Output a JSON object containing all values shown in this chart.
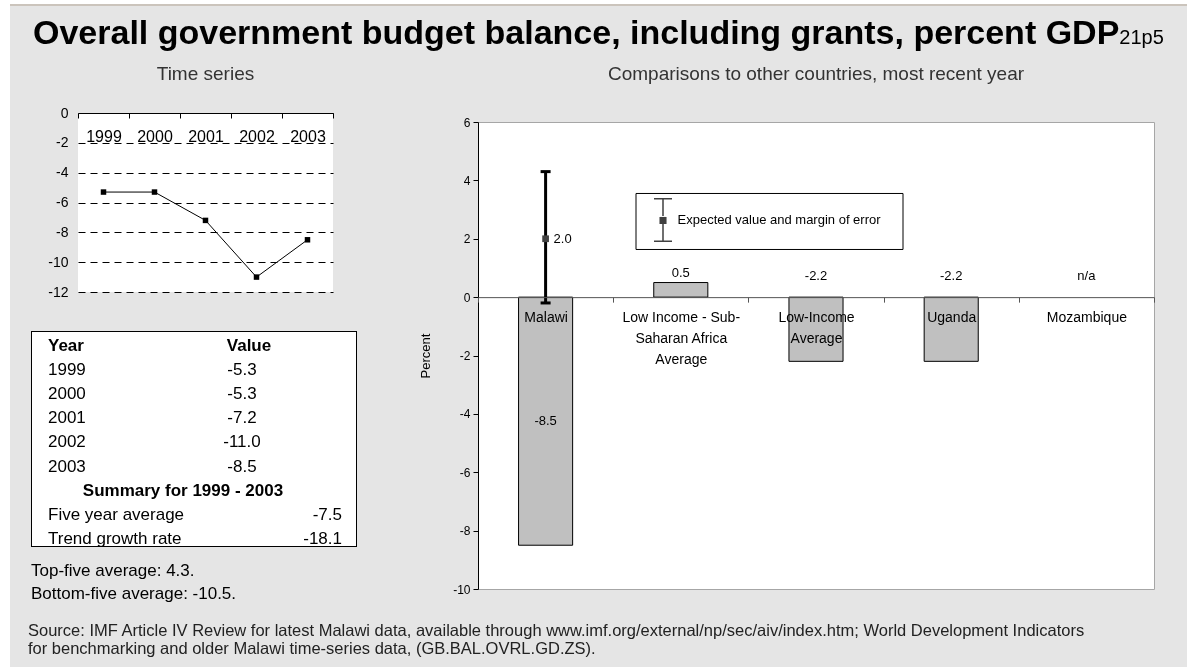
{
  "chart_data": [
    {
      "type": "line",
      "title": "Overall government budget balance, including grants, percent GDP",
      "subtitle": "Time series",
      "categories": [
        "1999",
        "2000",
        "2001",
        "2002",
        "2003"
      ],
      "values": [
        -5.3,
        -5.3,
        -7.2,
        -11.0,
        -8.5
      ],
      "color": "#000000",
      "marker": "square",
      "ylim": [
        -12,
        0
      ],
      "yticks": [
        -12,
        -10,
        -8,
        -6,
        -4,
        -2,
        0
      ],
      "grid": "y",
      "annotations": [
        "21p5",
        "Year",
        "Value",
        "-5.3",
        "-5.3",
        "-7.2",
        "-11.0",
        "-8.5",
        "Summary for 1999 - 2003",
        "Five year average",
        "-7.5",
        "Trend growth rate",
        "-18.1",
        "Top-five average: 4.3.",
        "Bottom-five average: -10.5."
      ]
    },
    {
      "type": "bar",
      "title": "Comparisons to other countries, most recent year",
      "ylabel": "Percent",
      "categories": [
        "Malawi",
        "Low Income - Sub-Saharan Africa Average",
        "Low-Income Average",
        "Uganda",
        "Mozambique"
      ],
      "series": [
        {
          "color": "#c0c0c0",
          "values": [
            -8.5,
            0.5,
            -2.2,
            -2.2,
            null
          ],
          "value_labels": [
            "-8.5",
            "0.5",
            "-2.2",
            "-2.2",
            "n/a"
          ]
        },
        {
          "type": "scatter",
          "name": "Expected value and margin of error",
          "color": "#404040",
          "values": [
            2.0,
            null,
            null,
            null,
            null
          ],
          "errors": [
            [
              -0.2,
              4.3
            ],
            null,
            null,
            null,
            null
          ],
          "value_labels": [
            "2.0",
            null,
            null,
            null,
            null
          ]
        }
      ],
      "ylim": [
        -10,
        6
      ],
      "yticks": [
        -10,
        -8,
        -6,
        -4,
        -2,
        0,
        2,
        4,
        6
      ],
      "legend": "top",
      "marker": "square",
      "annotations": [
        "Source: IMF Article IV Review for latest Malawi data, available through www.imf.org/external/np/sec/aiv/index.htm; World Development Indicators for benchmarking and older Malawi time-series data, (GB.BAL.OVRL.GD.ZS)."
      ]
    }
  ]
}
